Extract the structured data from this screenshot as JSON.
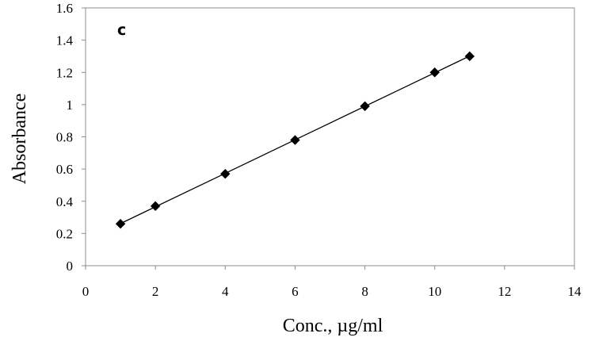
{
  "chart_data": {
    "type": "scatter",
    "panel_label": "c",
    "xlabel": "Conc., µg/ml",
    "ylabel": "Absorbance",
    "xlim": [
      0,
      14
    ],
    "ylim": [
      0,
      1.6
    ],
    "x_ticks": [
      "0",
      "2",
      "4",
      "6",
      "8",
      "10",
      "12",
      "14"
    ],
    "y_ticks": [
      "0",
      "0.2",
      "0.4",
      "0.6",
      "0.8",
      "1",
      "1.2",
      "1.4",
      "1.6"
    ],
    "grid": false,
    "legend": "none",
    "series": [
      {
        "marker": "diamond",
        "color": "#000000",
        "trendline": "linear",
        "x": [
          1,
          2,
          4,
          6,
          8,
          10,
          11
        ],
        "y": [
          0.26,
          0.37,
          0.57,
          0.78,
          0.99,
          1.2,
          1.3
        ]
      }
    ]
  }
}
